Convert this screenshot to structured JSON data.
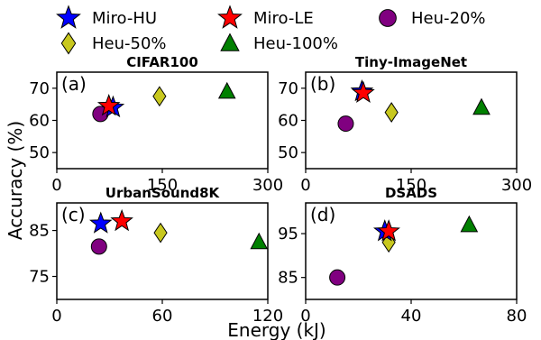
{
  "legend": {
    "placement": "top",
    "entries": [
      {
        "name": "Miro-HU",
        "marker": "star",
        "color": "#0000ff"
      },
      {
        "name": "Miro-LE",
        "marker": "star",
        "color": "#ff0000"
      },
      {
        "name": "Heu-20%",
        "marker": "circle",
        "color": "#800080"
      },
      {
        "name": "Heu-50%",
        "marker": "diamond",
        "color": "#c8c81e"
      },
      {
        "name": "Heu-100%",
        "marker": "triangle",
        "color": "#008000"
      }
    ]
  },
  "xlabel": "Energy (kJ)",
  "ylabel": "Accuracy (%)",
  "chart_data": [
    {
      "type": "scatter",
      "panel_label": "(a)",
      "title": "CIFAR100",
      "xlim": [
        0,
        300
      ],
      "ylim": [
        45,
        75
      ],
      "xticks": [
        0,
        150,
        300
      ],
      "yticks": [
        50,
        60,
        70
      ],
      "points": [
        {
          "series": "Miro-HU",
          "x": 80,
          "y": 64
        },
        {
          "series": "Miro-LE",
          "x": 74,
          "y": 64.5
        },
        {
          "series": "Heu-20%",
          "x": 62,
          "y": 62
        },
        {
          "series": "Heu-50%",
          "x": 146,
          "y": 67.5
        },
        {
          "series": "Heu-100%",
          "x": 242,
          "y": 69
        }
      ]
    },
    {
      "type": "scatter",
      "panel_label": "(b)",
      "title": "Tiny-ImageNet",
      "xlim": [
        0,
        300
      ],
      "ylim": [
        45,
        75
      ],
      "xticks": [
        0,
        150,
        300
      ],
      "yticks": [
        50,
        60,
        70
      ],
      "points": [
        {
          "series": "Miro-HU",
          "x": 80,
          "y": 69
        },
        {
          "series": "Miro-LE",
          "x": 82,
          "y": 68.5
        },
        {
          "series": "Heu-20%",
          "x": 57,
          "y": 59
        },
        {
          "series": "Heu-50%",
          "x": 122,
          "y": 62.5
        },
        {
          "series": "Heu-100%",
          "x": 250,
          "y": 64
        }
      ]
    },
    {
      "type": "scatter",
      "panel_label": "(c)",
      "title": "UrbanSound8K",
      "xlim": [
        0,
        120
      ],
      "ylim": [
        70,
        91
      ],
      "xticks": [
        0,
        60,
        120
      ],
      "yticks": [
        75,
        85
      ],
      "points": [
        {
          "series": "Miro-HU",
          "x": 25,
          "y": 86.5
        },
        {
          "series": "Miro-LE",
          "x": 37,
          "y": 87
        },
        {
          "series": "Heu-20%",
          "x": 24,
          "y": 81.5
        },
        {
          "series": "Heu-50%",
          "x": 59,
          "y": 84.5
        },
        {
          "series": "Heu-100%",
          "x": 115,
          "y": 82.5
        }
      ]
    },
    {
      "type": "scatter",
      "panel_label": "(d)",
      "title": "DSADS",
      "xlim": [
        0,
        80
      ],
      "ylim": [
        80,
        102
      ],
      "xticks": [
        0,
        40,
        80
      ],
      "yticks": [
        85,
        95
      ],
      "points": [
        {
          "series": "Miro-HU",
          "x": 30,
          "y": 95.5
        },
        {
          "series": "Miro-LE",
          "x": 31.5,
          "y": 95.5
        },
        {
          "series": "Heu-20%",
          "x": 12,
          "y": 85
        },
        {
          "series": "Heu-50%",
          "x": 31.5,
          "y": 93
        },
        {
          "series": "Heu-100%",
          "x": 62,
          "y": 97
        }
      ]
    }
  ]
}
